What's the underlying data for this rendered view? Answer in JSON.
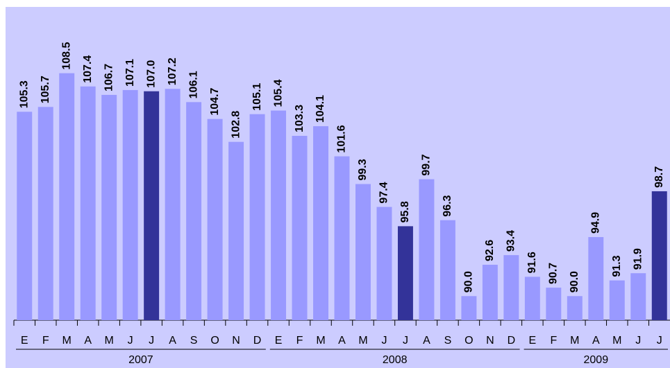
{
  "chart_data": {
    "type": "bar",
    "ylim": [
      88,
      114
    ],
    "groups": [
      {
        "name": "2007",
        "categories": [
          "E",
          "F",
          "M",
          "A",
          "M",
          "J",
          "J",
          "A",
          "S",
          "O",
          "N",
          "D"
        ],
        "values": [
          105.3,
          105.7,
          108.5,
          107.4,
          106.7,
          107.1,
          107.0,
          107.2,
          106.1,
          104.7,
          102.8,
          105.1
        ],
        "value_labels": [
          "105.3",
          "105.7",
          "108.5",
          "107.4",
          "106.7",
          "107.1",
          "107.0",
          "107.2",
          "106.1",
          "104.7",
          "102.8",
          "105.1"
        ],
        "colors": [
          "#9999ff",
          "#9999ff",
          "#9999ff",
          "#9999ff",
          "#9999ff",
          "#9999ff",
          "#333399",
          "#9999ff",
          "#9999ff",
          "#9999ff",
          "#9999ff",
          "#9999ff"
        ]
      },
      {
        "name": "2008",
        "categories": [
          "E",
          "F",
          "M",
          "A",
          "M",
          "J",
          "J",
          "A",
          "S",
          "O",
          "N",
          "D"
        ],
        "values": [
          105.4,
          103.3,
          104.1,
          101.6,
          99.3,
          97.4,
          95.8,
          99.7,
          96.3,
          90.0,
          92.6,
          93.4
        ],
        "value_labels": [
          "105.4",
          "103.3",
          "104.1",
          "101.6",
          "99.3",
          "97.4",
          "95.8",
          "99.7",
          "96.3",
          "90.0",
          "92.6",
          "93.4"
        ],
        "colors": [
          "#9999ff",
          "#9999ff",
          "#9999ff",
          "#9999ff",
          "#9999ff",
          "#9999ff",
          "#333399",
          "#9999ff",
          "#9999ff",
          "#9999ff",
          "#9999ff",
          "#9999ff"
        ]
      },
      {
        "name": "2009",
        "categories": [
          "E",
          "F",
          "M",
          "A",
          "M",
          "J",
          "J"
        ],
        "values": [
          91.6,
          90.7,
          90.0,
          94.9,
          91.3,
          91.9,
          98.7
        ],
        "value_labels": [
          "91.6",
          "90.7",
          "90.0",
          "94.9",
          "91.3",
          "91.9",
          "98.7"
        ],
        "colors": [
          "#9999ff",
          "#9999ff",
          "#9999ff",
          "#9999ff",
          "#9999ff",
          "#9999ff",
          "#333399"
        ]
      }
    ]
  }
}
